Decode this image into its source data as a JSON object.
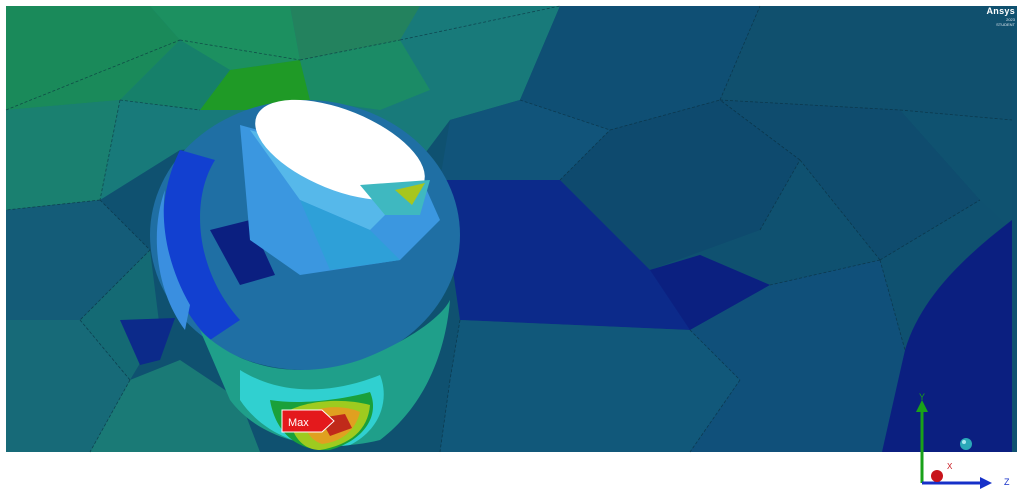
{
  "viewer": {
    "brand_text": "Ansys",
    "brand_sub_1": "2023",
    "brand_sub_2": "STUDENT",
    "max_probe_label": "Max"
  },
  "triad": {
    "y_label": "Y",
    "x_label": "X",
    "z_label": "Z",
    "y_color": "#1aa11a",
    "z_color": "#1630c8",
    "x_color": "#c8141b"
  },
  "contour_colors": {
    "background_tone": "#0f5170",
    "low": "#0a1e7a",
    "mid_low": "#1d63b0",
    "mid": "#2fb3d6",
    "mid_high": "#1a9c3c",
    "high": "#9ecb1f",
    "max": "#e0301f"
  }
}
